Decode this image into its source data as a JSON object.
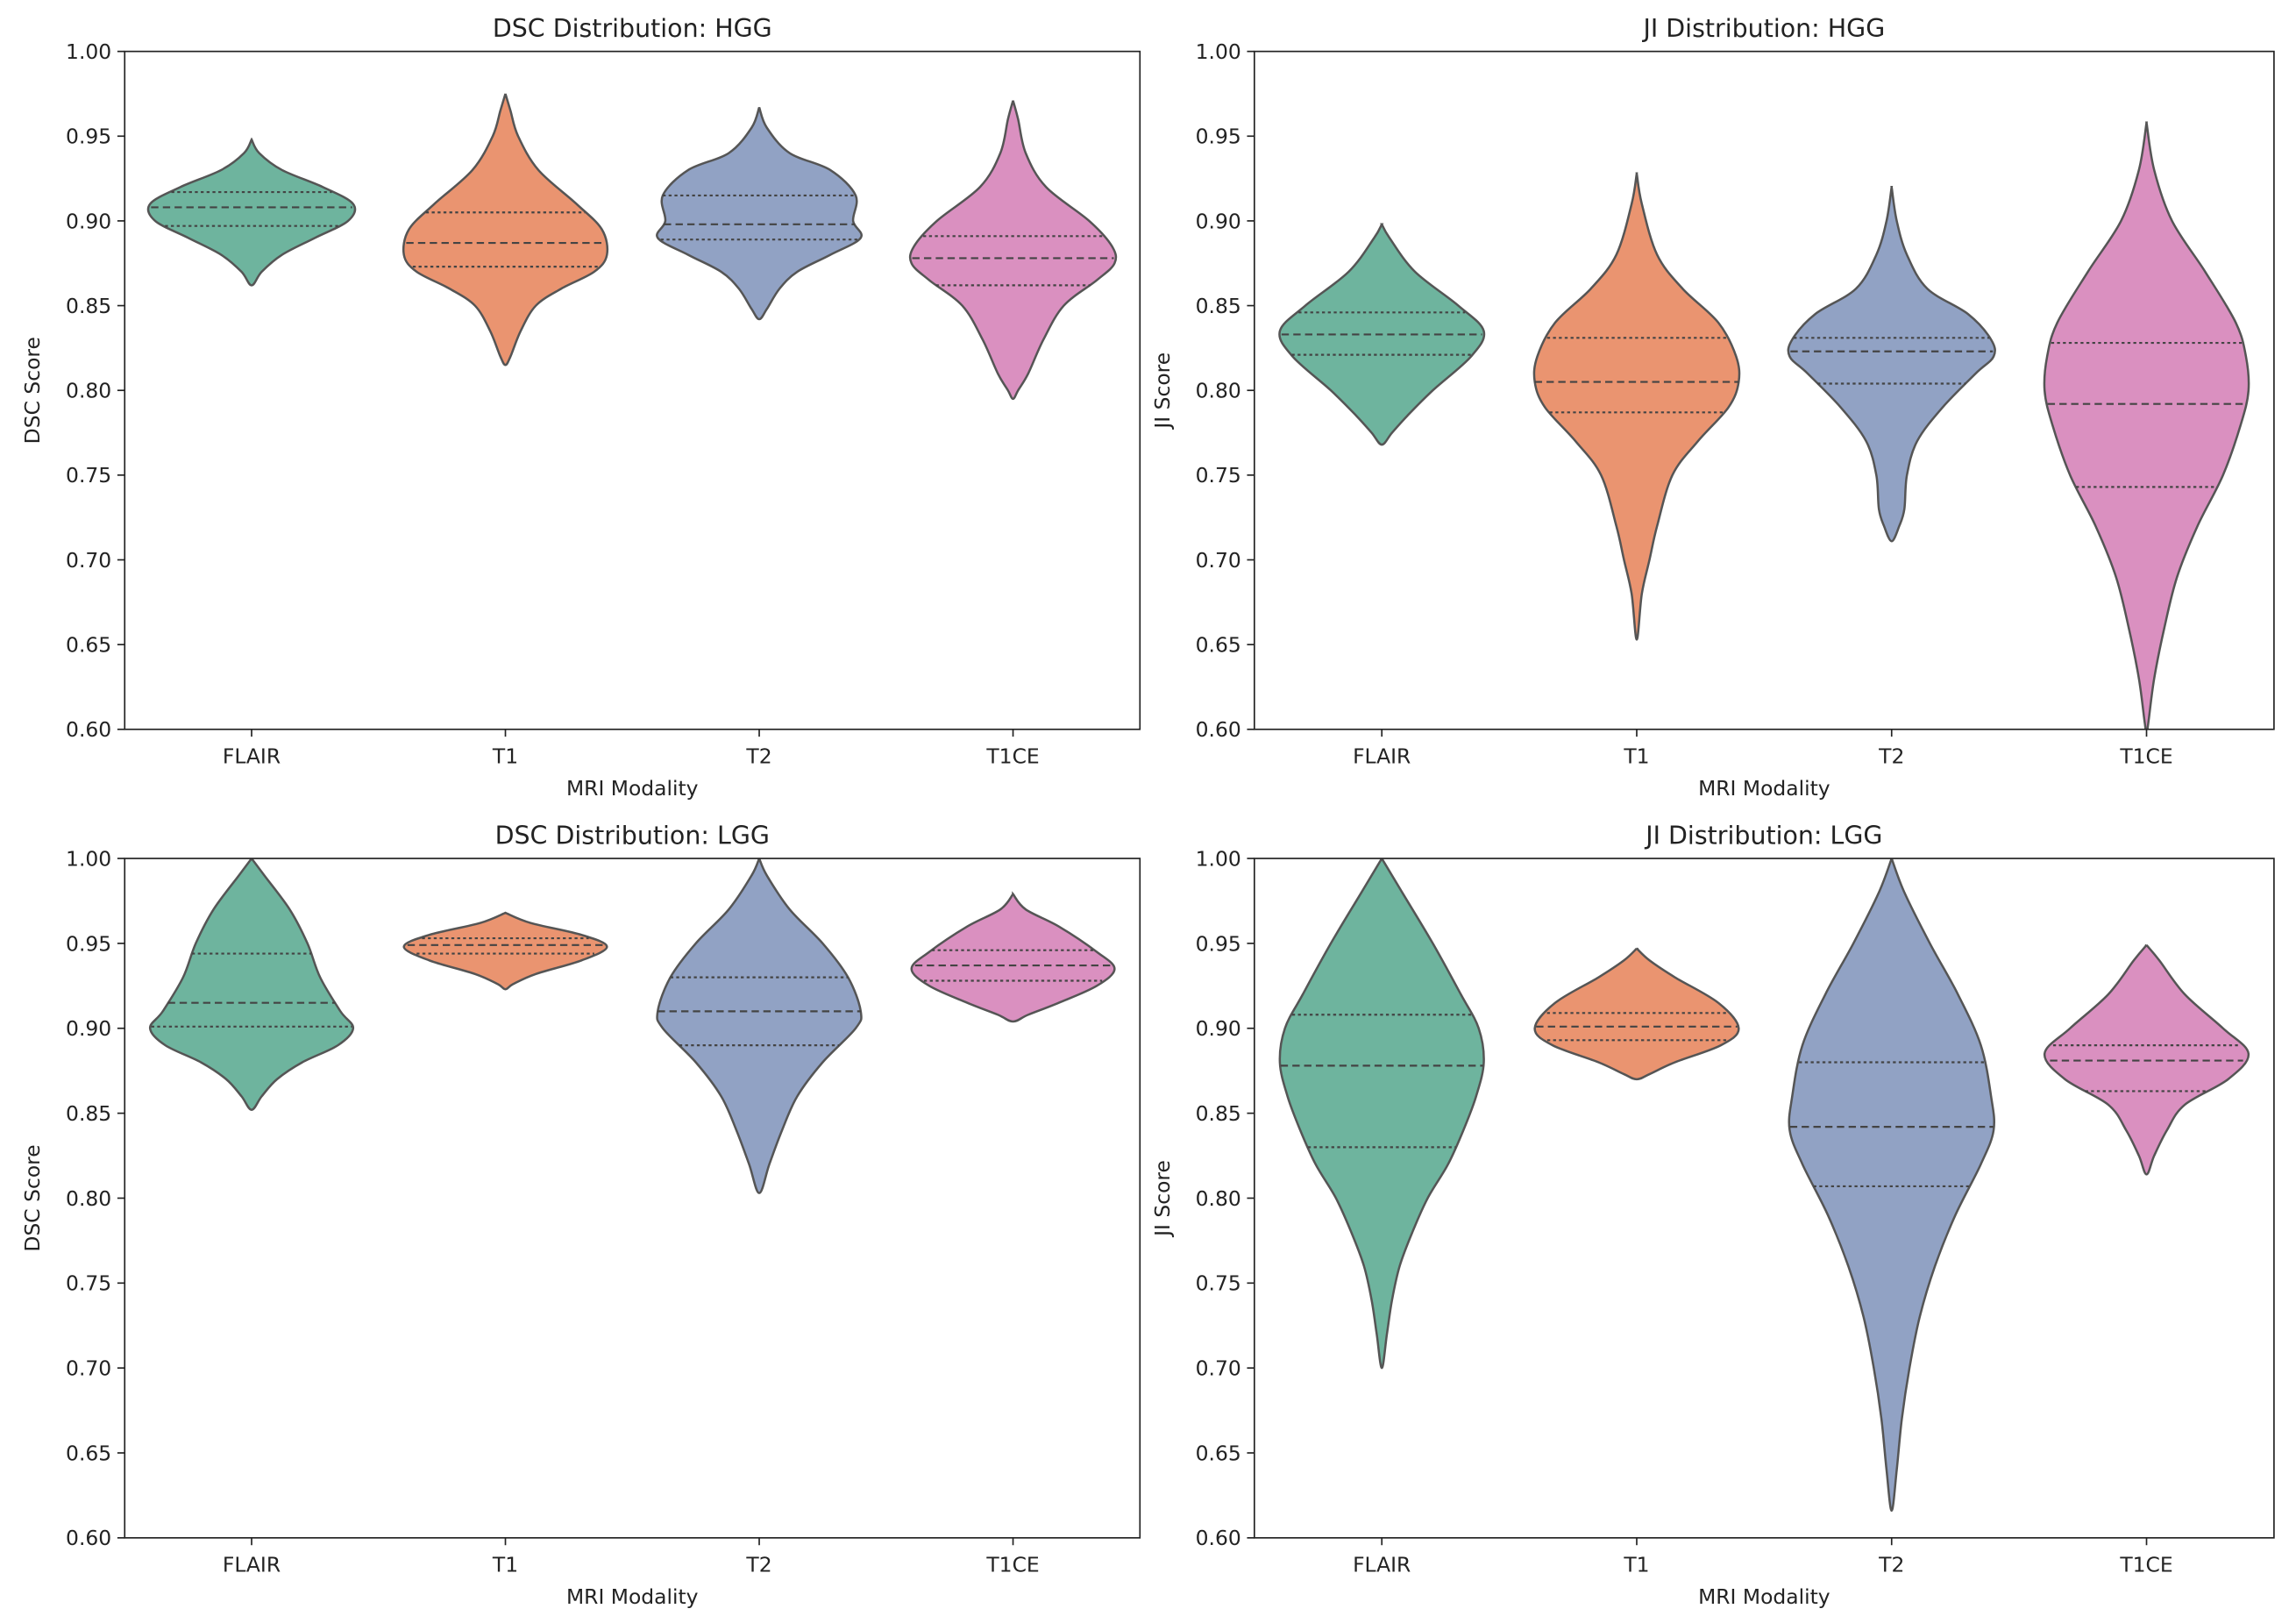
{
  "chart_data": [
    {
      "type": "violin",
      "title": "DSC Distribution: HGG",
      "xlabel": "MRI Modality",
      "ylabel": "DSC Score",
      "ylim": [
        0.6,
        1.0
      ],
      "yticks": [
        "0.60",
        "0.65",
        "0.70",
        "0.75",
        "0.80",
        "0.85",
        "0.90",
        "0.95",
        "1.00"
      ],
      "categories": [
        "FLAIR",
        "T1",
        "T2",
        "T1CE"
      ],
      "violins": [
        {
          "name": "FLAIR",
          "q1": 0.897,
          "median": 0.908,
          "q3": 0.917,
          "density": [
            [
              0.948,
              0
            ],
            [
              0.94,
              0.03
            ],
            [
              0.93,
              0.12
            ],
            [
              0.92,
              0.28
            ],
            [
              0.91,
              0.4
            ],
            [
              0.9,
              0.38
            ],
            [
              0.89,
              0.25
            ],
            [
              0.88,
              0.12
            ],
            [
              0.87,
              0.04
            ],
            [
              0.862,
              0
            ]
          ]
        },
        {
          "name": "T1",
          "q1": 0.873,
          "median": 0.887,
          "q3": 0.905,
          "density": [
            [
              0.975,
              0
            ],
            [
              0.965,
              0.02
            ],
            [
              0.95,
              0.05
            ],
            [
              0.93,
              0.13
            ],
            [
              0.91,
              0.28
            ],
            [
              0.895,
              0.38
            ],
            [
              0.88,
              0.4
            ],
            [
              0.87,
              0.35
            ],
            [
              0.86,
              0.22
            ],
            [
              0.85,
              0.12
            ],
            [
              0.835,
              0.06
            ],
            [
              0.82,
              0.02
            ],
            [
              0.815,
              0
            ]
          ]
        },
        {
          "name": "T2",
          "q1": 0.889,
          "median": 0.898,
          "q3": 0.915,
          "density": [
            [
              0.967,
              0
            ],
            [
              0.955,
              0.03
            ],
            [
              0.94,
              0.12
            ],
            [
              0.93,
              0.28
            ],
            [
              0.915,
              0.38
            ],
            [
              0.9,
              0.37
            ],
            [
              0.89,
              0.4
            ],
            [
              0.88,
              0.28
            ],
            [
              0.87,
              0.15
            ],
            [
              0.86,
              0.08
            ],
            [
              0.848,
              0.03
            ],
            [
              0.842,
              0
            ]
          ]
        },
        {
          "name": "T1CE",
          "q1": 0.862,
          "median": 0.878,
          "q3": 0.891,
          "density": [
            [
              0.971,
              0
            ],
            [
              0.96,
              0.02
            ],
            [
              0.94,
              0.05
            ],
            [
              0.92,
              0.13
            ],
            [
              0.9,
              0.3
            ],
            [
              0.885,
              0.39
            ],
            [
              0.875,
              0.4
            ],
            [
              0.865,
              0.33
            ],
            [
              0.85,
              0.2
            ],
            [
              0.83,
              0.12
            ],
            [
              0.81,
              0.06
            ],
            [
              0.8,
              0.02
            ],
            [
              0.795,
              0
            ]
          ]
        }
      ]
    },
    {
      "type": "violin",
      "title": "JI Distribution: HGG",
      "xlabel": "MRI Modality",
      "ylabel": "JI Score",
      "ylim": [
        0.6,
        1.0
      ],
      "yticks": [
        "0.60",
        "0.65",
        "0.70",
        "0.75",
        "0.80",
        "0.85",
        "0.90",
        "0.95",
        "1.00"
      ],
      "categories": [
        "FLAIR",
        "T1",
        "T2",
        "T1CE"
      ],
      "violins": [
        {
          "name": "FLAIR",
          "q1": 0.821,
          "median": 0.833,
          "q3": 0.846,
          "density": [
            [
              0.898,
              0
            ],
            [
              0.89,
              0.03
            ],
            [
              0.87,
              0.13
            ],
            [
              0.85,
              0.3
            ],
            [
              0.835,
              0.4
            ],
            [
              0.82,
              0.35
            ],
            [
              0.8,
              0.2
            ],
            [
              0.785,
              0.1
            ],
            [
              0.775,
              0.04
            ],
            [
              0.768,
              0
            ]
          ]
        },
        {
          "name": "T1",
          "q1": 0.787,
          "median": 0.805,
          "q3": 0.831,
          "density": [
            [
              0.928,
              0
            ],
            [
              0.91,
              0.02
            ],
            [
              0.88,
              0.08
            ],
            [
              0.86,
              0.18
            ],
            [
              0.84,
              0.32
            ],
            [
              0.82,
              0.39
            ],
            [
              0.805,
              0.4
            ],
            [
              0.79,
              0.36
            ],
            [
              0.77,
              0.24
            ],
            [
              0.75,
              0.14
            ],
            [
              0.72,
              0.08
            ],
            [
              0.7,
              0.05
            ],
            [
              0.68,
              0.02
            ],
            [
              0.653,
              0
            ]
          ]
        },
        {
          "name": "T2",
          "q1": 0.804,
          "median": 0.823,
          "q3": 0.831,
          "density": [
            [
              0.92,
              0
            ],
            [
              0.9,
              0.02
            ],
            [
              0.88,
              0.06
            ],
            [
              0.86,
              0.14
            ],
            [
              0.845,
              0.3
            ],
            [
              0.83,
              0.39
            ],
            [
              0.82,
              0.4
            ],
            [
              0.81,
              0.33
            ],
            [
              0.79,
              0.2
            ],
            [
              0.77,
              0.1
            ],
            [
              0.75,
              0.06
            ],
            [
              0.73,
              0.05
            ],
            [
              0.72,
              0.03
            ],
            [
              0.711,
              0
            ]
          ]
        },
        {
          "name": "T1CE",
          "q1": 0.743,
          "median": 0.792,
          "q3": 0.828,
          "density": [
            [
              0.958,
              0
            ],
            [
              0.93,
              0.03
            ],
            [
              0.9,
              0.1
            ],
            [
              0.87,
              0.23
            ],
            [
              0.84,
              0.35
            ],
            [
              0.82,
              0.39
            ],
            [
              0.8,
              0.4
            ],
            [
              0.78,
              0.37
            ],
            [
              0.75,
              0.3
            ],
            [
              0.72,
              0.2
            ],
            [
              0.69,
              0.12
            ],
            [
              0.66,
              0.07
            ],
            [
              0.63,
              0.03
            ],
            [
              0.605,
              0.008
            ],
            [
              0.598,
              0
            ]
          ]
        }
      ]
    },
    {
      "type": "violin",
      "title": "DSC Distribution: LGG",
      "xlabel": "MRI Modality",
      "ylabel": "DSC Score",
      "ylim": [
        0.6,
        1.0
      ],
      "yticks": [
        "0.60",
        "0.65",
        "0.70",
        "0.75",
        "0.80",
        "0.85",
        "0.90",
        "0.95",
        "1.00"
      ],
      "categories": [
        "FLAIR",
        "T1",
        "T2",
        "T1CE"
      ],
      "violins": [
        {
          "name": "FLAIR",
          "q1": 0.901,
          "median": 0.915,
          "q3": 0.944,
          "density": [
            [
              1.0,
              0
            ],
            [
              0.99,
              0.05
            ],
            [
              0.97,
              0.15
            ],
            [
              0.95,
              0.22
            ],
            [
              0.93,
              0.27
            ],
            [
              0.91,
              0.35
            ],
            [
              0.9,
              0.4
            ],
            [
              0.89,
              0.34
            ],
            [
              0.88,
              0.2
            ],
            [
              0.87,
              0.1
            ],
            [
              0.86,
              0.04
            ],
            [
              0.852,
              0
            ]
          ]
        },
        {
          "name": "T1",
          "q1": 0.944,
          "median": 0.949,
          "q3": 0.953,
          "density": [
            [
              0.968,
              0
            ],
            [
              0.962,
              0.1
            ],
            [
              0.955,
              0.3
            ],
            [
              0.948,
              0.4
            ],
            [
              0.94,
              0.3
            ],
            [
              0.932,
              0.12
            ],
            [
              0.926,
              0.03
            ],
            [
              0.923,
              0
            ]
          ]
        },
        {
          "name": "T2",
          "q1": 0.89,
          "median": 0.91,
          "q3": 0.93,
          "density": [
            [
              1.0,
              0
            ],
            [
              0.99,
              0.03
            ],
            [
              0.97,
              0.12
            ],
            [
              0.95,
              0.25
            ],
            [
              0.93,
              0.35
            ],
            [
              0.91,
              0.4
            ],
            [
              0.9,
              0.38
            ],
            [
              0.88,
              0.25
            ],
            [
              0.86,
              0.15
            ],
            [
              0.84,
              0.09
            ],
            [
              0.82,
              0.04
            ],
            [
              0.803,
              0
            ]
          ]
        },
        {
          "name": "T1CE",
          "q1": 0.928,
          "median": 0.937,
          "q3": 0.946,
          "density": [
            [
              0.979,
              0
            ],
            [
              0.97,
              0.05
            ],
            [
              0.96,
              0.18
            ],
            [
              0.945,
              0.33
            ],
            [
              0.935,
              0.4
            ],
            [
              0.925,
              0.33
            ],
            [
              0.915,
              0.18
            ],
            [
              0.908,
              0.06
            ],
            [
              0.904,
              0
            ]
          ]
        }
      ]
    },
    {
      "type": "violin",
      "title": "JI Distribution: LGG",
      "xlabel": "MRI Modality",
      "ylabel": "JI Score",
      "ylim": [
        0.6,
        1.0
      ],
      "yticks": [
        "0.60",
        "0.65",
        "0.70",
        "0.75",
        "0.80",
        "0.85",
        "0.90",
        "0.95",
        "1.00"
      ],
      "categories": [
        "FLAIR",
        "T1",
        "T2",
        "T1CE"
      ],
      "violins": [
        {
          "name": "FLAIR",
          "q1": 0.83,
          "median": 0.878,
          "q3": 0.908,
          "density": [
            [
              1.0,
              0
            ],
            [
              0.98,
              0.08
            ],
            [
              0.95,
              0.2
            ],
            [
              0.92,
              0.31
            ],
            [
              0.9,
              0.38
            ],
            [
              0.88,
              0.4
            ],
            [
              0.86,
              0.37
            ],
            [
              0.84,
              0.32
            ],
            [
              0.82,
              0.26
            ],
            [
              0.8,
              0.18
            ],
            [
              0.78,
              0.12
            ],
            [
              0.76,
              0.07
            ],
            [
              0.74,
              0.04
            ],
            [
              0.72,
              0.02
            ],
            [
              0.7,
              0
            ]
          ]
        },
        {
          "name": "T1",
          "q1": 0.893,
          "median": 0.901,
          "q3": 0.909,
          "density": [
            [
              0.947,
              0
            ],
            [
              0.94,
              0.05
            ],
            [
              0.93,
              0.15
            ],
            [
              0.915,
              0.32
            ],
            [
              0.9,
              0.4
            ],
            [
              0.89,
              0.33
            ],
            [
              0.88,
              0.15
            ],
            [
              0.873,
              0.05
            ],
            [
              0.87,
              0
            ]
          ]
        },
        {
          "name": "T2",
          "q1": 0.807,
          "median": 0.842,
          "q3": 0.88,
          "density": [
            [
              1.0,
              0
            ],
            [
              0.98,
              0.05
            ],
            [
              0.95,
              0.15
            ],
            [
              0.92,
              0.26
            ],
            [
              0.89,
              0.35
            ],
            [
              0.86,
              0.39
            ],
            [
              0.84,
              0.4
            ],
            [
              0.82,
              0.35
            ],
            [
              0.79,
              0.25
            ],
            [
              0.76,
              0.17
            ],
            [
              0.73,
              0.11
            ],
            [
              0.7,
              0.07
            ],
            [
              0.67,
              0.04
            ],
            [
              0.64,
              0.02
            ],
            [
              0.616,
              0
            ]
          ]
        },
        {
          "name": "T1CE",
          "q1": 0.863,
          "median": 0.881,
          "q3": 0.89,
          "density": [
            [
              0.949,
              0
            ],
            [
              0.94,
              0.05
            ],
            [
              0.92,
              0.15
            ],
            [
              0.9,
              0.3
            ],
            [
              0.885,
              0.4
            ],
            [
              0.87,
              0.32
            ],
            [
              0.855,
              0.15
            ],
            [
              0.84,
              0.08
            ],
            [
              0.825,
              0.03
            ],
            [
              0.814,
              0
            ]
          ]
        }
      ]
    }
  ],
  "palette": [
    "#6eb49e",
    "#ea9470",
    "#91a2c4",
    "#da90c0"
  ],
  "outline_color": "#555555"
}
